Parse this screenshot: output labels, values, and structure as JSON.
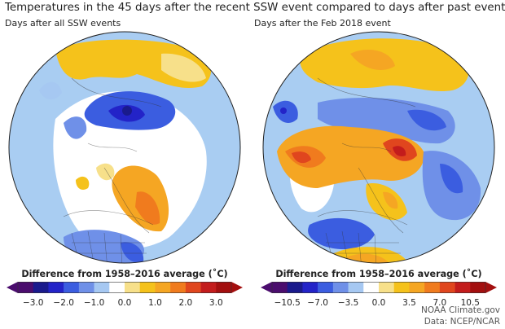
{
  "title": "Temperatures in the 45 days after the recent SSW event compared to days after past events",
  "panels": [
    {
      "subtitle": "Days after all SSW events",
      "legend_title": "Difference from 1958–2016 average (˚C)",
      "ticks": [
        "−3.0",
        "−2.0",
        "−1.0",
        "0.0",
        "1.0",
        "2.0",
        "3.0"
      ],
      "colors": [
        "#4b0d6e",
        "#1a1a8c",
        "#2323c8",
        "#3b5de0",
        "#6f90e8",
        "#a6c8f2",
        "#ffffff",
        "#f7e08a",
        "#f5c21b",
        "#f5a623",
        "#f07b1e",
        "#e0461e",
        "#c31c1c",
        "#a30f0f"
      ]
    },
    {
      "subtitle": "Days after the Feb 2018 event",
      "legend_title": "Difference from 1958–2016 average (˚C)",
      "ticks": [
        "−10.5",
        "−7.0",
        "−3.5",
        "0.0",
        "3.5",
        "7.0",
        "10.5"
      ],
      "colors": [
        "#4b0d6e",
        "#1a1a8c",
        "#2323c8",
        "#3b5de0",
        "#6f90e8",
        "#a6c8f2",
        "#ffffff",
        "#f7e08a",
        "#f5c21b",
        "#f5a623",
        "#f07b1e",
        "#e0461e",
        "#c31c1c",
        "#a30f0f"
      ]
    }
  ],
  "credits": {
    "line1": "NOAA Climate.gov",
    "line2": "Data: NCEP/NCAR"
  }
}
